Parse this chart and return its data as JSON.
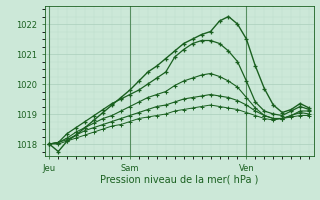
{
  "background_color": "#cce8d8",
  "plot_bg_color": "#cce8d8",
  "grid_color_major": "#aacfbc",
  "grid_color_minor": "#bbdcca",
  "line_color": "#1a6020",
  "xlabel": "Pression niveau de la mer( hPa )",
  "xtick_labels": [
    "Jeu",
    "Sam",
    "Ven"
  ],
  "xtick_positions": [
    0,
    9,
    22
  ],
  "ylim": [
    1017.6,
    1022.6
  ],
  "yticks": [
    1018,
    1019,
    1020,
    1021,
    1022
  ],
  "series": [
    [
      1018.0,
      1017.75,
      1018.1,
      1018.3,
      1018.55,
      1018.8,
      1019.05,
      1019.3,
      1019.55,
      1019.8,
      1020.1,
      1020.4,
      1020.6,
      1020.85,
      1021.1,
      1021.35,
      1021.5,
      1021.65,
      1021.75,
      1022.1,
      1022.25,
      1022.0,
      1021.5,
      1020.6,
      1019.85,
      1019.3,
      1019.05,
      1019.15,
      1019.35,
      1019.2
    ],
    [
      1018.0,
      1018.05,
      1018.35,
      1018.55,
      1018.75,
      1018.95,
      1019.15,
      1019.35,
      1019.5,
      1019.65,
      1019.8,
      1020.0,
      1020.2,
      1020.4,
      1020.9,
      1021.15,
      1021.35,
      1021.45,
      1021.45,
      1021.35,
      1021.1,
      1020.75,
      1020.1,
      1019.4,
      1019.1,
      1019.0,
      1018.95,
      1019.1,
      1019.25,
      1019.15
    ],
    [
      1018.0,
      1018.05,
      1018.2,
      1018.4,
      1018.55,
      1018.7,
      1018.85,
      1018.95,
      1019.1,
      1019.25,
      1019.4,
      1019.55,
      1019.65,
      1019.75,
      1019.95,
      1020.1,
      1020.2,
      1020.3,
      1020.35,
      1020.25,
      1020.1,
      1019.9,
      1019.55,
      1019.2,
      1018.95,
      1018.85,
      1018.85,
      1018.95,
      1019.1,
      1019.1
    ],
    [
      1018.0,
      1018.05,
      1018.15,
      1018.3,
      1018.45,
      1018.55,
      1018.65,
      1018.75,
      1018.85,
      1018.95,
      1019.05,
      1019.15,
      1019.25,
      1019.3,
      1019.4,
      1019.5,
      1019.55,
      1019.6,
      1019.65,
      1019.6,
      1019.55,
      1019.45,
      1019.3,
      1019.1,
      1018.95,
      1018.85,
      1018.85,
      1018.95,
      1019.05,
      1019.0
    ],
    [
      1018.0,
      1018.0,
      1018.1,
      1018.2,
      1018.3,
      1018.4,
      1018.5,
      1018.6,
      1018.65,
      1018.75,
      1018.85,
      1018.9,
      1018.95,
      1019.0,
      1019.1,
      1019.15,
      1019.2,
      1019.25,
      1019.3,
      1019.25,
      1019.2,
      1019.15,
      1019.05,
      1018.95,
      1018.85,
      1018.8,
      1018.85,
      1018.9,
      1018.95,
      1018.95
    ]
  ],
  "n_points": 30,
  "figsize": [
    3.2,
    2.0
  ],
  "dpi": 100
}
